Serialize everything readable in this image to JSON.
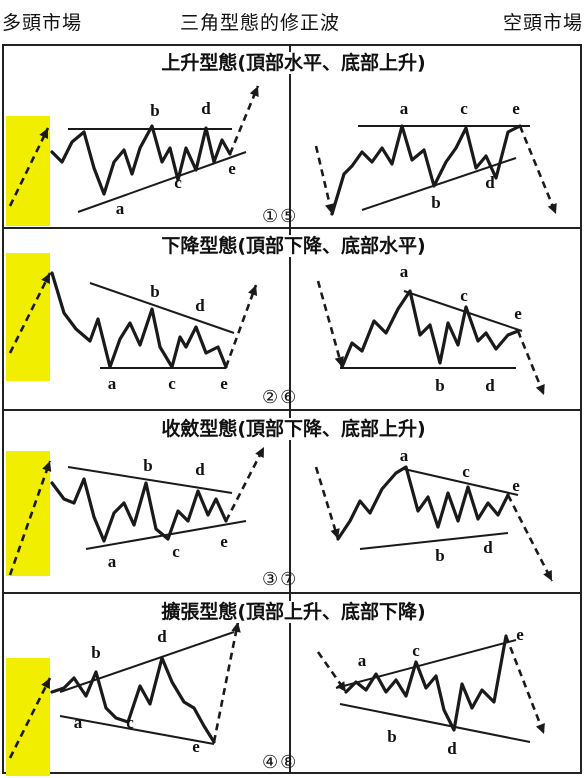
{
  "header": {
    "left": "多頭市場",
    "center": "三角型態的修正波",
    "right": "空頭市場"
  },
  "colors": {
    "highlight": "#f2ee00",
    "line": "#1a1a1a"
  },
  "panels": [
    {
      "title": "上升型態(頂部水平、底部上升)",
      "num_left": "①",
      "num_right": "⑤",
      "left_labels": [
        "a",
        "b",
        "c",
        "d",
        "e"
      ],
      "right_labels": [
        "a",
        "b",
        "c",
        "d",
        "e"
      ]
    },
    {
      "title": "下降型態(頂部下降、底部水平)",
      "num_left": "②",
      "num_right": "⑥",
      "left_labels": [
        "a",
        "b",
        "c",
        "d",
        "e"
      ],
      "right_labels": [
        "a",
        "b",
        "c",
        "d",
        "e"
      ]
    },
    {
      "title": "收斂型態(頂部下降、底部上升)",
      "num_left": "③",
      "num_right": "⑦",
      "left_labels": [
        "a",
        "b",
        "c",
        "d",
        "e"
      ],
      "right_labels": [
        "a",
        "b",
        "c",
        "d",
        "e"
      ]
    },
    {
      "title": "擴張型態(頂部上升、底部下降)",
      "num_left": "④",
      "num_right": "⑧",
      "left_labels": [
        "a",
        "b",
        "c",
        "d",
        "e"
      ],
      "right_labels": [
        "a",
        "b",
        "c",
        "d",
        "e"
      ]
    }
  ]
}
